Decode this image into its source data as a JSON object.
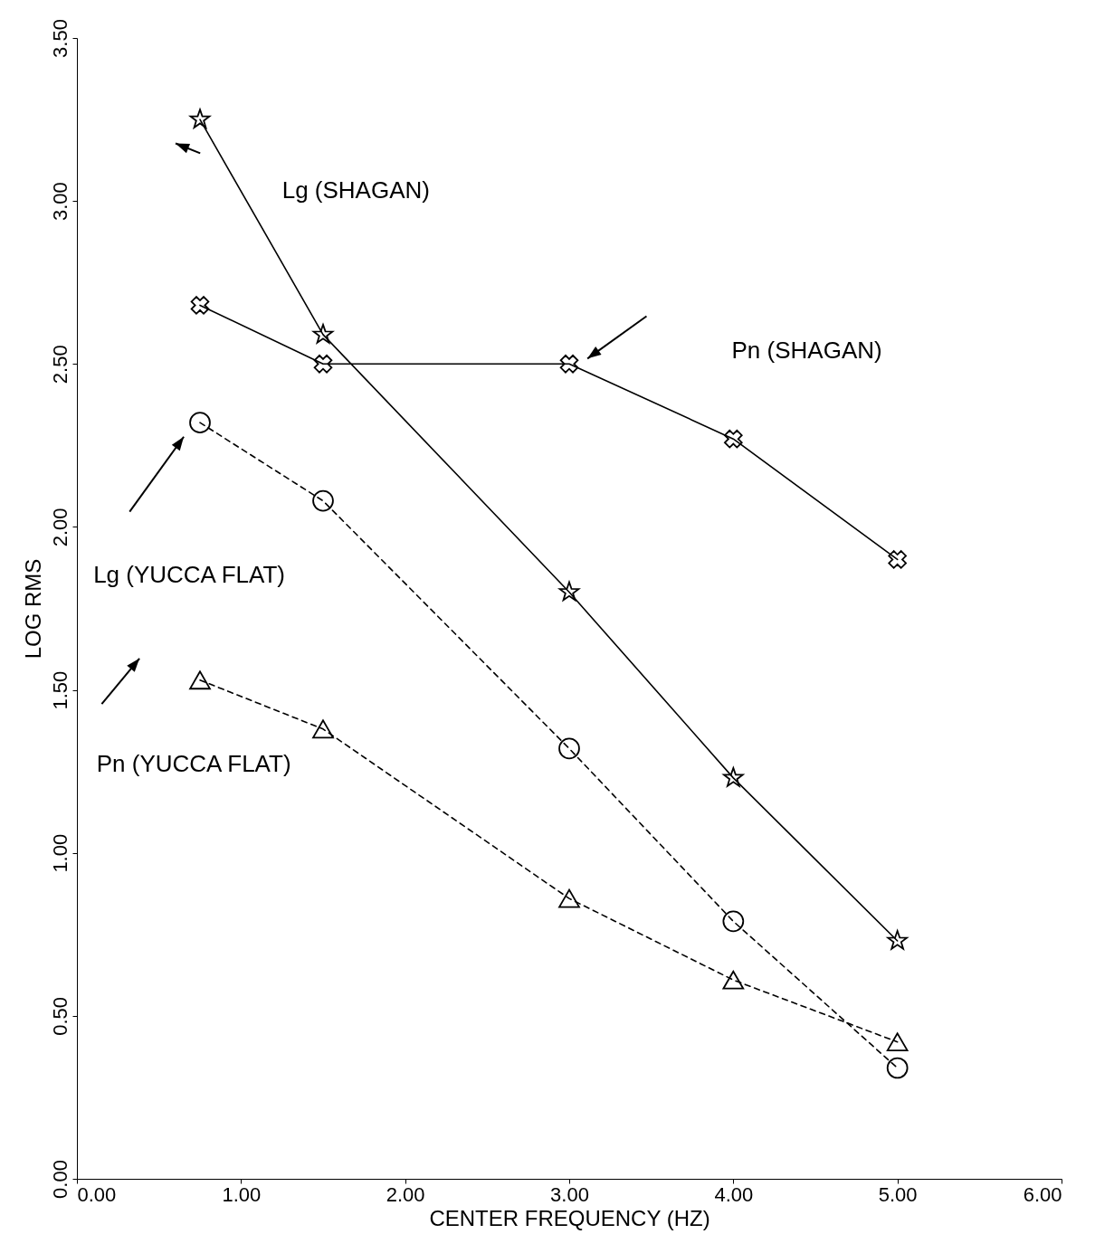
{
  "chart_data": {
    "type": "line",
    "xlabel": "CENTER FREQUENCY (HZ)",
    "ylabel": "LOG RMS",
    "x": [
      0.75,
      1.5,
      3.0,
      4.0,
      5.0
    ],
    "xlim": [
      0,
      6
    ],
    "ylim": [
      0,
      3.5
    ],
    "xticks": [
      {
        "value": 0,
        "label": "0.00"
      },
      {
        "value": 1,
        "label": "1.00"
      },
      {
        "value": 2,
        "label": "2.00"
      },
      {
        "value": 3,
        "label": "3.00"
      },
      {
        "value": 4,
        "label": "4.00"
      },
      {
        "value": 5,
        "label": "5.00"
      },
      {
        "value": 6,
        "label": "6.00"
      }
    ],
    "yticks": [
      {
        "value": 0,
        "label": "0.00"
      },
      {
        "value": 0.5,
        "label": "0.50"
      },
      {
        "value": 1,
        "label": "1.00"
      },
      {
        "value": 1.5,
        "label": "1.50"
      },
      {
        "value": 2,
        "label": "2.00"
      },
      {
        "value": 2.5,
        "label": "2.50"
      },
      {
        "value": 3,
        "label": "3.00"
      },
      {
        "value": 3.5,
        "label": "3.50"
      }
    ],
    "grid": false,
    "series": [
      {
        "name": "Lg (SHAGAN)",
        "color": "#000000",
        "marker": "star",
        "line_style": "solid",
        "values": [
          3.25,
          2.59,
          1.8,
          1.23,
          0.73
        ]
      },
      {
        "name": "Pn (SHAGAN)",
        "color": "#000000",
        "marker": "cross",
        "line_style": "solid",
        "values": [
          2.68,
          2.5,
          2.5,
          2.27,
          1.9
        ]
      },
      {
        "name": "Lg (YUCCA FLAT)",
        "color": "#000000",
        "marker": "circle",
        "line_style": "dashed",
        "values": [
          2.32,
          2.08,
          1.32,
          0.79,
          0.34
        ]
      },
      {
        "name": "Pn (YUCCA FLAT)",
        "color": "#000000",
        "marker": "triangle",
        "line_style": "dashed",
        "values": [
          1.53,
          1.38,
          0.86,
          0.61,
          0.42
        ]
      }
    ]
  }
}
